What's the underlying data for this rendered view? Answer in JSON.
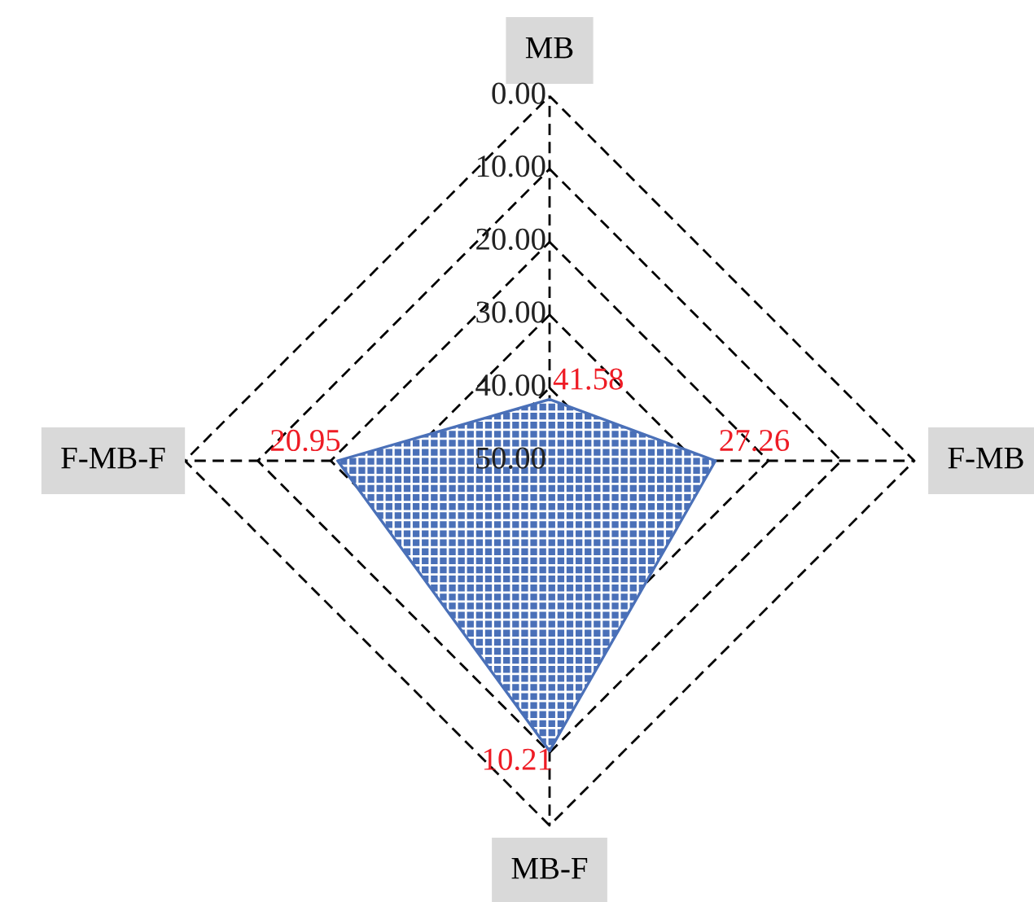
{
  "chart_data": {
    "type": "radar",
    "categories": [
      "MB",
      "F-MB",
      "MB-F",
      "F-MB-F"
    ],
    "series": [
      {
        "color": "#4a70b8",
        "values": [
          41.58,
          27.26,
          10.21,
          20.95
        ]
      }
    ],
    "ylim": [
      50,
      0
    ],
    "yticks": [
      {
        "value": 0,
        "label": "0.00"
      },
      {
        "value": 10,
        "label": "10.00"
      },
      {
        "value": 20,
        "label": "20.00"
      },
      {
        "value": 30,
        "label": "30.00"
      },
      {
        "value": 40,
        "label": "40.00"
      },
      {
        "value": 50,
        "label": "50.00"
      }
    ],
    "grid": true,
    "line_style": "dashed",
    "data_labels": true,
    "marker": "none"
  }
}
